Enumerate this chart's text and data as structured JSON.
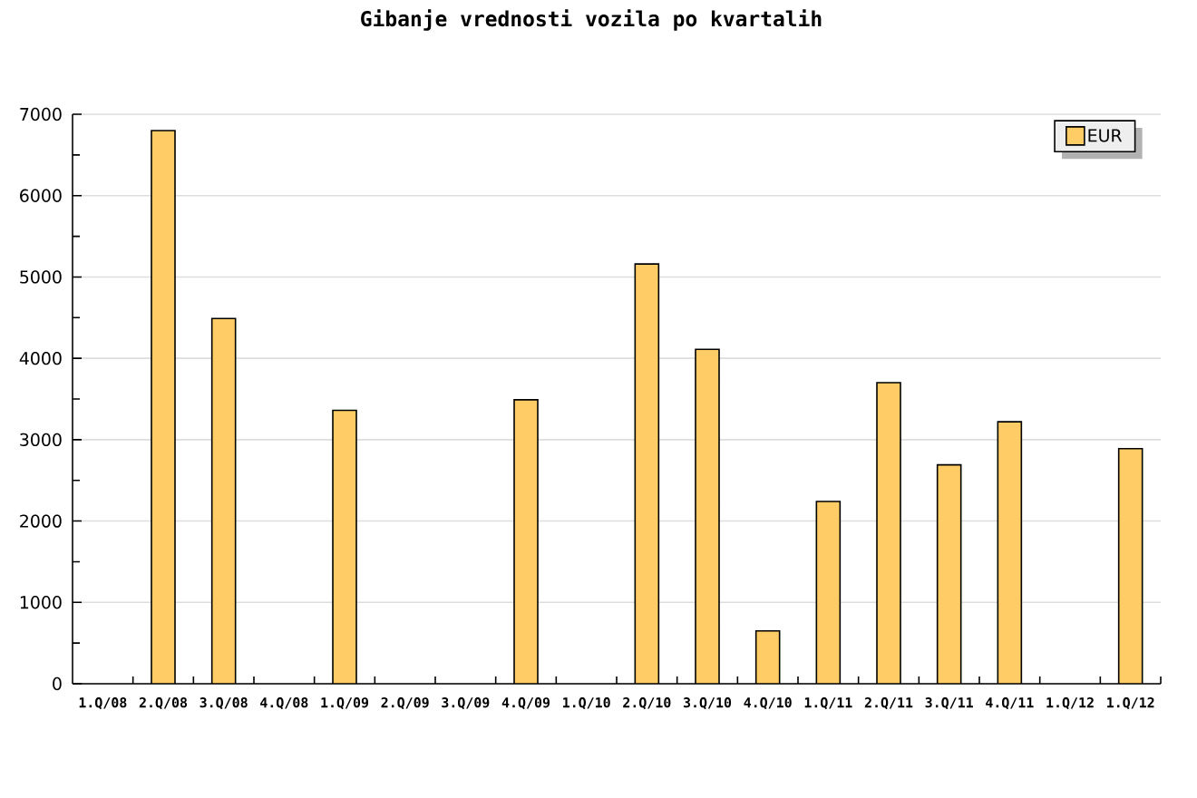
{
  "chart_data": {
    "type": "bar",
    "title": "Gibanje vrednosti vozila po kvartalih",
    "categories": [
      "1.Q/08",
      "2.Q/08",
      "3.Q/08",
      "4.Q/08",
      "1.Q/09",
      "2.Q/09",
      "3.Q/09",
      "4.Q/09",
      "1.Q/10",
      "2.Q/10",
      "3.Q/10",
      "4.Q/10",
      "1.Q/11",
      "2.Q/11",
      "3.Q/11",
      "4.Q/11",
      "1.Q/12",
      "1.Q/12"
    ],
    "series": [
      {
        "name": "EUR",
        "color": "#ffcc66",
        "values": [
          null,
          6800,
          4490,
          null,
          3360,
          null,
          null,
          3490,
          null,
          5160,
          4110,
          650,
          2240,
          3700,
          2690,
          3220,
          null,
          2890
        ]
      }
    ],
    "ylim": [
      0,
      7000
    ],
    "yticks": [
      0,
      {
        "value": 500,
        "label": null
      },
      1000,
      {
        "value": 1500,
        "label": null
      },
      2000,
      {
        "value": 2500,
        "label": null
      },
      3000,
      {
        "value": 3500,
        "label": null
      },
      4000,
      {
        "value": 4500,
        "label": null
      },
      5000,
      {
        "value": 5500,
        "label": null
      },
      6000,
      {
        "value": 6500,
        "label": null
      },
      7000
    ],
    "grid": "y",
    "legend": "top right"
  }
}
